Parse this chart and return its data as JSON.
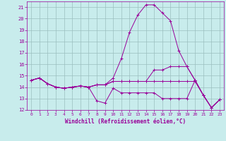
{
  "background_color": "#c8ecec",
  "line_color": "#990099",
  "grid_color": "#9bbfbf",
  "xlabel": "Windchill (Refroidissement éolien,°C)",
  "ylim": [
    12,
    21.5
  ],
  "xlim": [
    -0.5,
    23.5
  ],
  "yticks": [
    12,
    13,
    14,
    15,
    16,
    17,
    18,
    19,
    20,
    21
  ],
  "xticks": [
    0,
    1,
    2,
    3,
    4,
    5,
    6,
    7,
    8,
    9,
    10,
    11,
    12,
    13,
    14,
    15,
    16,
    17,
    18,
    19,
    20,
    21,
    22,
    23
  ],
  "lines": [
    {
      "x": [
        0,
        1,
        2,
        3,
        4,
        5,
        6,
        7,
        8,
        9,
        10,
        11,
        12,
        13,
        14,
        15,
        16,
        17,
        18,
        19,
        20,
        21,
        22,
        23
      ],
      "y": [
        14.6,
        14.8,
        14.3,
        14.0,
        13.9,
        14.0,
        14.1,
        14.0,
        12.8,
        12.6,
        13.9,
        13.5,
        13.5,
        13.5,
        13.5,
        13.5,
        13.0,
        13.0,
        13.0,
        13.0,
        14.6,
        13.3,
        12.2,
        12.9
      ]
    },
    {
      "x": [
        0,
        1,
        2,
        3,
        4,
        5,
        6,
        7,
        8,
        9,
        10,
        11,
        12,
        13,
        14,
        15,
        16,
        17,
        18,
        19,
        20,
        21,
        22,
        23
      ],
      "y": [
        14.6,
        14.8,
        14.3,
        14.0,
        13.9,
        14.0,
        14.1,
        14.0,
        14.2,
        14.2,
        14.8,
        16.5,
        18.8,
        20.3,
        21.2,
        21.2,
        20.5,
        19.8,
        17.2,
        15.8,
        14.6,
        13.3,
        12.2,
        12.9
      ]
    },
    {
      "x": [
        0,
        1,
        2,
        3,
        4,
        5,
        6,
        7,
        8,
        9,
        10,
        11,
        12,
        13,
        14,
        15,
        16,
        17,
        18,
        19,
        20,
        21,
        22,
        23
      ],
      "y": [
        14.6,
        14.8,
        14.3,
        14.0,
        13.9,
        14.0,
        14.1,
        14.0,
        14.2,
        14.2,
        14.5,
        14.5,
        14.5,
        14.5,
        14.5,
        15.5,
        15.5,
        15.8,
        15.8,
        15.8,
        14.6,
        13.3,
        12.2,
        12.9
      ]
    },
    {
      "x": [
        0,
        1,
        2,
        3,
        4,
        5,
        6,
        7,
        8,
        9,
        10,
        11,
        12,
        13,
        14,
        15,
        16,
        17,
        18,
        19,
        20,
        21,
        22,
        23
      ],
      "y": [
        14.6,
        14.8,
        14.3,
        14.0,
        13.9,
        14.0,
        14.1,
        14.0,
        14.2,
        14.2,
        14.5,
        14.5,
        14.5,
        14.5,
        14.5,
        14.5,
        14.5,
        14.5,
        14.5,
        14.5,
        14.5,
        13.3,
        12.2,
        12.9
      ]
    }
  ]
}
